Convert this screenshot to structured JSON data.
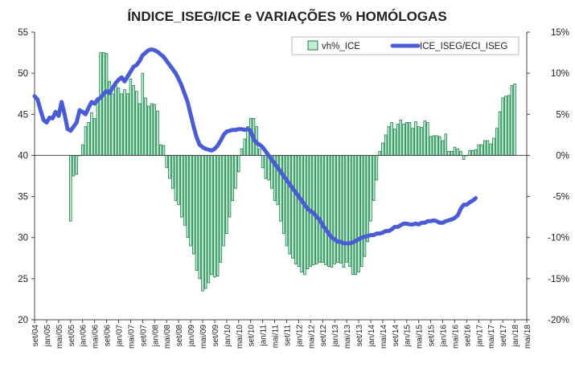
{
  "chart_data": {
    "type": "bar+line",
    "title": "ÍNDICE_ISEG/ICE e VARIAÇÕES % HOMÓLOGAS",
    "left_axis": {
      "ylim": [
        20,
        55
      ],
      "ticks": [
        "20",
        "25",
        "30",
        "35",
        "40",
        "45",
        "50",
        "55"
      ]
    },
    "right_axis": {
      "ylim": [
        -20,
        15
      ],
      "ticks": [
        "-20%",
        "-15%",
        "-10%",
        "-5%",
        "0%",
        "5%",
        "10%",
        "15%"
      ]
    },
    "x_tick_labels": [
      "set/04",
      "jan/05",
      "mai/05",
      "set/05",
      "jan/06",
      "mai/06",
      "set/06",
      "jan/07",
      "mai/07",
      "set/07",
      "jan/08",
      "mai/08",
      "set/08",
      "jan/09",
      "mai/09",
      "set/09",
      "jan/10",
      "mai/10",
      "set/10",
      "jan/11",
      "mai/11",
      "set/11",
      "jan/12",
      "mai/12",
      "set/12",
      "jan/13",
      "mai/13",
      "set/13",
      "jan/14",
      "mai/14",
      "set/14",
      "jan/15",
      "mai/15",
      "set/15",
      "jan/16",
      "mai/16",
      "set/16",
      "jan/17",
      "mai/17",
      "set/17",
      "jan/18",
      "mai/18"
    ],
    "grid": false,
    "legend": {
      "position": "top-right"
    },
    "colors": {
      "bar_fill": "#b8f0d0",
      "bar_stroke": "#1f7a4a",
      "line": "#4a5bd6"
    },
    "series": [
      {
        "name": "vh%_ICE",
        "kind": "bar",
        "axis": "right",
        "start": "set/05",
        "values": [
          -8.0,
          -2.5,
          -2.3,
          0.0,
          1.3,
          3.5,
          4.0,
          5.2,
          4.5,
          7.0,
          12.5,
          12.5,
          12.4,
          9.0,
          7.5,
          8.5,
          8.2,
          7.5,
          8.0,
          7.5,
          9.3,
          8.5,
          7.8,
          6.3,
          10.0,
          7.0,
          6.0,
          6.3,
          6.2,
          5.4,
          1.3,
          1.2,
          -1.5,
          -2.8,
          -4.0,
          -5.5,
          -6.0,
          -7.5,
          -8.5,
          -10.0,
          -11.0,
          -12.0,
          -14.0,
          -15.0,
          -16.5,
          -16.2,
          -15.5,
          -14.5,
          -14.8,
          -14.7,
          -13.0,
          -11.0,
          -9.5,
          -7.5,
          -5.5,
          -4.0,
          -2.0,
          0.8,
          2.0,
          3.5,
          4.5,
          4.5,
          3.5,
          0.8,
          -1.5,
          -2.8,
          -3.0,
          -4.0,
          -5.5,
          -6.0,
          -8.0,
          -9.5,
          -11.0,
          -12.0,
          -12.5,
          -13.2,
          -13.5,
          -14.2,
          -14.5,
          -13.8,
          -13.5,
          -13.3,
          -13.2,
          -13.0,
          -13.0,
          -13.3,
          -13.5,
          -13.6,
          -13.2,
          -13.0,
          -13.1,
          -13.6,
          -13.0,
          -13.5,
          -14.5,
          -14.5,
          -14.2,
          -13.5,
          -12.3,
          -10.5,
          -8.0,
          -5.5,
          -3.0,
          0.5,
          1.5,
          2.5,
          3.5,
          4.0,
          3.2,
          3.8,
          4.3,
          3.8,
          4.0,
          4.0,
          3.3,
          4.1,
          3.5,
          3.4,
          4.2,
          4.0,
          2.3,
          2.4,
          2.4,
          2.3,
          1.8,
          2.6,
          0.5,
          0.5,
          1.0,
          0.8,
          0.5,
          -0.5,
          0.0,
          0.6,
          0.6,
          0.7,
          1.3,
          1.3,
          1.8,
          1.8,
          1.4,
          2.1,
          3.3,
          5.3,
          7.0,
          7.2,
          7.3,
          8.5,
          8.7
        ]
      },
      {
        "name": "ICE_ISEG/ECI_ISEG",
        "kind": "line",
        "axis": "left",
        "start": "set/04",
        "values": [
          47.2,
          46.8,
          45.5,
          44.3,
          44.0,
          44.6,
          44.5,
          45.3,
          44.8,
          46.5,
          45.0,
          43.2,
          43.0,
          43.5,
          44.0,
          45.5,
          45.3,
          45.0,
          45.8,
          46.5,
          46.3,
          46.8,
          47.0,
          47.5,
          47.8,
          47.6,
          48.2,
          48.8,
          49.2,
          49.5,
          49.0,
          49.6,
          50.2,
          50.8,
          51.0,
          51.5,
          52.2,
          52.5,
          52.8,
          52.9,
          52.8,
          52.6,
          52.3,
          52.0,
          51.5,
          51.0,
          50.5,
          50.0,
          49.3,
          48.5,
          47.5,
          46.5,
          45.0,
          43.5,
          42.2,
          41.3,
          41.0,
          40.8,
          40.7,
          40.6,
          40.8,
          41.2,
          41.8,
          42.5,
          42.9,
          43.0,
          43.1,
          43.1,
          43.2,
          43.2,
          43.1,
          43.2,
          43.0,
          42.0,
          41.5,
          41.3,
          41.0,
          40.5,
          40.0,
          39.5,
          39.0,
          38.5,
          38.0,
          37.5,
          37.0,
          36.5,
          36.0,
          35.5,
          35.0,
          34.5,
          34.0,
          33.5,
          33.2,
          33.0,
          32.5,
          32.2,
          31.5,
          31.0,
          30.5,
          30.0,
          29.8,
          29.5,
          29.5,
          29.3,
          29.3,
          29.3,
          29.4,
          29.6,
          29.8,
          30.0,
          30.1,
          30.2,
          30.3,
          30.3,
          30.5,
          30.5,
          30.6,
          30.8,
          30.8,
          31.0,
          31.3,
          31.3,
          31.5,
          31.7,
          31.7,
          31.6,
          31.6,
          31.7,
          31.6,
          31.8,
          31.8,
          32.0,
          32.0,
          32.1,
          32.0,
          31.8,
          31.8,
          32.0,
          32.1,
          32.2,
          32.4,
          32.7,
          33.5,
          34.0,
          34.0,
          34.3,
          34.5,
          34.8
        ]
      }
    ]
  }
}
